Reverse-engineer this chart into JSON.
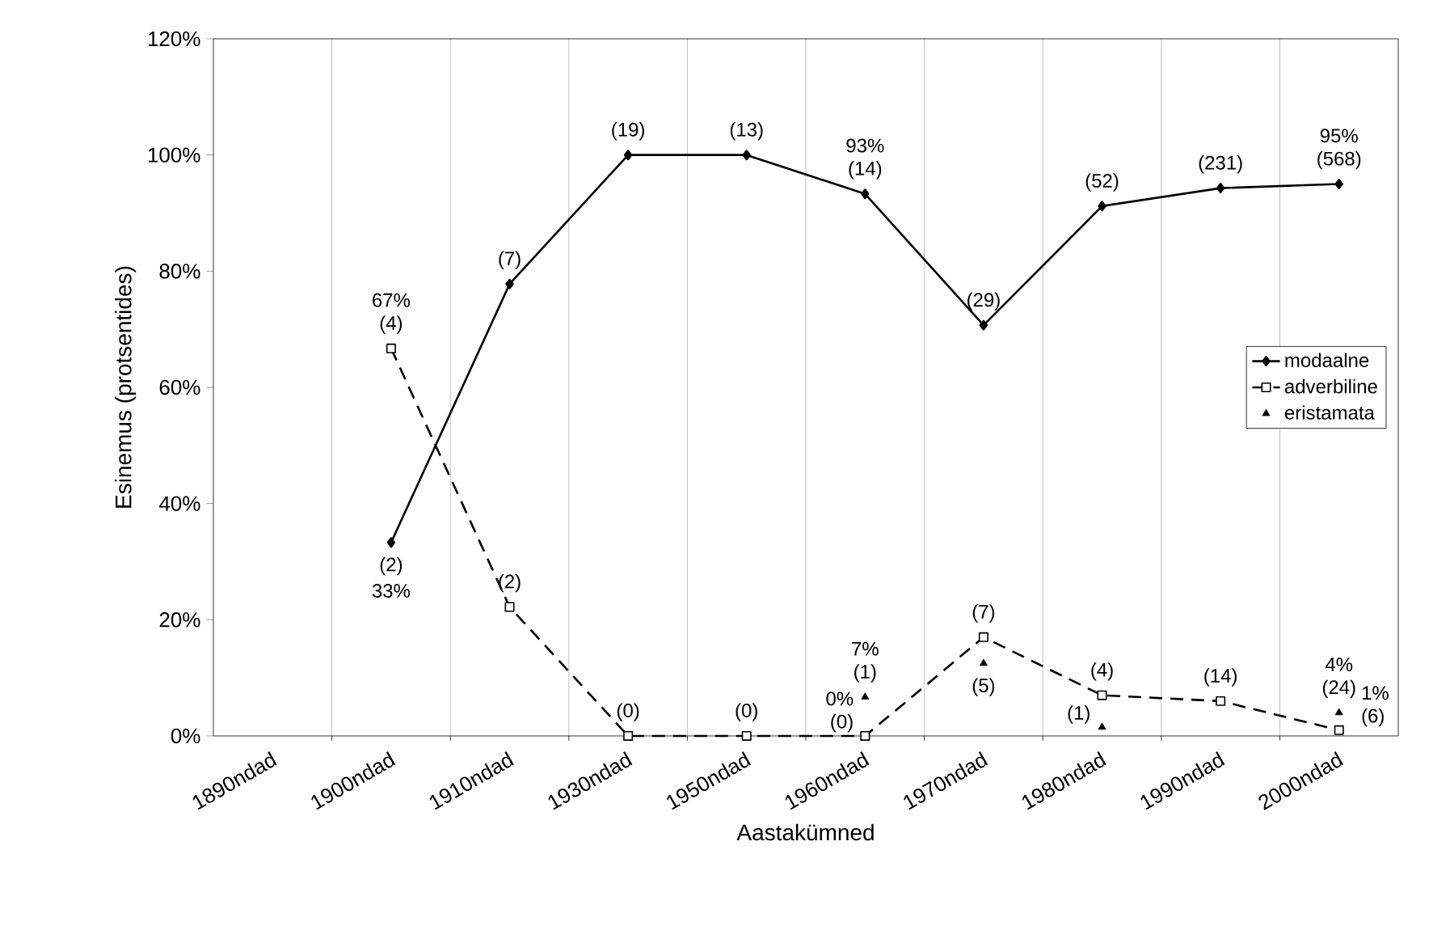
{
  "chart_data": {
    "type": "line",
    "xlabel": "Aastakümned",
    "ylabel": "Esinemus (protsentides)",
    "categories": [
      "1890ndad",
      "1900ndad",
      "1910ndad",
      "1930ndad",
      "1950ndad",
      "1960ndad",
      "1970ndad",
      "1980ndad",
      "1990ndad",
      "2000ndad"
    ],
    "series": [
      {
        "name": "modaalne",
        "color": "#000000",
        "marker": "diamond",
        "line_style": "solid",
        "values": [
          null,
          33.3,
          77.8,
          100,
          100,
          93.3,
          70.7,
          91.2,
          94.3,
          95.0
        ]
      },
      {
        "name": "adverbiline",
        "color": "#000000",
        "marker": "square",
        "line_style": "dashed",
        "values": [
          null,
          66.7,
          22.2,
          0,
          0,
          0,
          17,
          7,
          6,
          1
        ]
      },
      {
        "name": "eristamata",
        "type": "scatter",
        "color": "#000000",
        "marker": "triangle",
        "values": [
          null,
          null,
          null,
          null,
          null,
          6.7,
          12.5,
          1.5,
          null,
          4
        ]
      }
    ],
    "ylim": [
      0,
      120
    ],
    "yticks": [
      {
        "value": 0,
        "label": "0%"
      },
      {
        "value": 20,
        "label": "20%"
      },
      {
        "value": 40,
        "label": "40%"
      },
      {
        "value": 60,
        "label": "60%"
      },
      {
        "value": 80,
        "label": "80%"
      },
      {
        "value": 100,
        "label": "100%"
      },
      {
        "value": 120,
        "label": "120%"
      }
    ],
    "grid": "x",
    "legend": "right",
    "annotations": [
      {
        "text": "67%",
        "x": "1900ndad",
        "y": 66.7
      },
      {
        "text": "(4)",
        "x": "1900ndad",
        "y": 66.7
      },
      {
        "text": "(2)",
        "x": "1900ndad",
        "y": 33.3
      },
      {
        "text": "33%",
        "x": "1900ndad",
        "y": 33.3
      },
      {
        "text": "(7)",
        "x": "1910ndad",
        "y": 77.8
      },
      {
        "text": "(2)",
        "x": "1910ndad",
        "y": 22.2
      },
      {
        "text": "(19)",
        "x": "1930ndad",
        "y": 100
      },
      {
        "text": "(0)",
        "x": "1930ndad",
        "y": 0
      },
      {
        "text": "(13)",
        "x": "1950ndad",
        "y": 100
      },
      {
        "text": "(0)",
        "x": "1950ndad",
        "y": 0
      },
      {
        "text": "93%",
        "x": "1960ndad",
        "y": 93.3
      },
      {
        "text": "(14)",
        "x": "1960ndad",
        "y": 93.3
      },
      {
        "text": "7%",
        "x": "1960ndad",
        "y": 6.7
      },
      {
        "text": "(1)",
        "x": "1960ndad",
        "y": 6.7
      },
      {
        "text": "0%",
        "x": "1960ndad",
        "y": 0
      },
      {
        "text": "(0)",
        "x": "1960ndad",
        "y": 0
      },
      {
        "text": "(29)",
        "x": "1970ndad",
        "y": 70.7
      },
      {
        "text": "(7)",
        "x": "1970ndad",
        "y": 17
      },
      {
        "text": "(5)",
        "x": "1970ndad",
        "y": 12.5
      },
      {
        "text": "(52)",
        "x": "1980ndad",
        "y": 91.2
      },
      {
        "text": "(4)",
        "x": "1980ndad",
        "y": 7
      },
      {
        "text": "(1)",
        "x": "1980ndad",
        "y": 1.5
      },
      {
        "text": "(231)",
        "x": "1990ndad",
        "y": 94.3
      },
      {
        "text": "(14)",
        "x": "1990ndad",
        "y": 6
      },
      {
        "text": "95%",
        "x": "2000ndad",
        "y": 95.0
      },
      {
        "text": "(568)",
        "x": "2000ndad",
        "y": 95.0
      },
      {
        "text": "4%",
        "x": "2000ndad",
        "y": 4
      },
      {
        "text": "(24)",
        "x": "2000ndad",
        "y": 4
      },
      {
        "text": "1%",
        "x": "2000ndad",
        "y": 1
      },
      {
        "text": "(6)",
        "x": "2000ndad",
        "y": 1
      }
    ]
  }
}
